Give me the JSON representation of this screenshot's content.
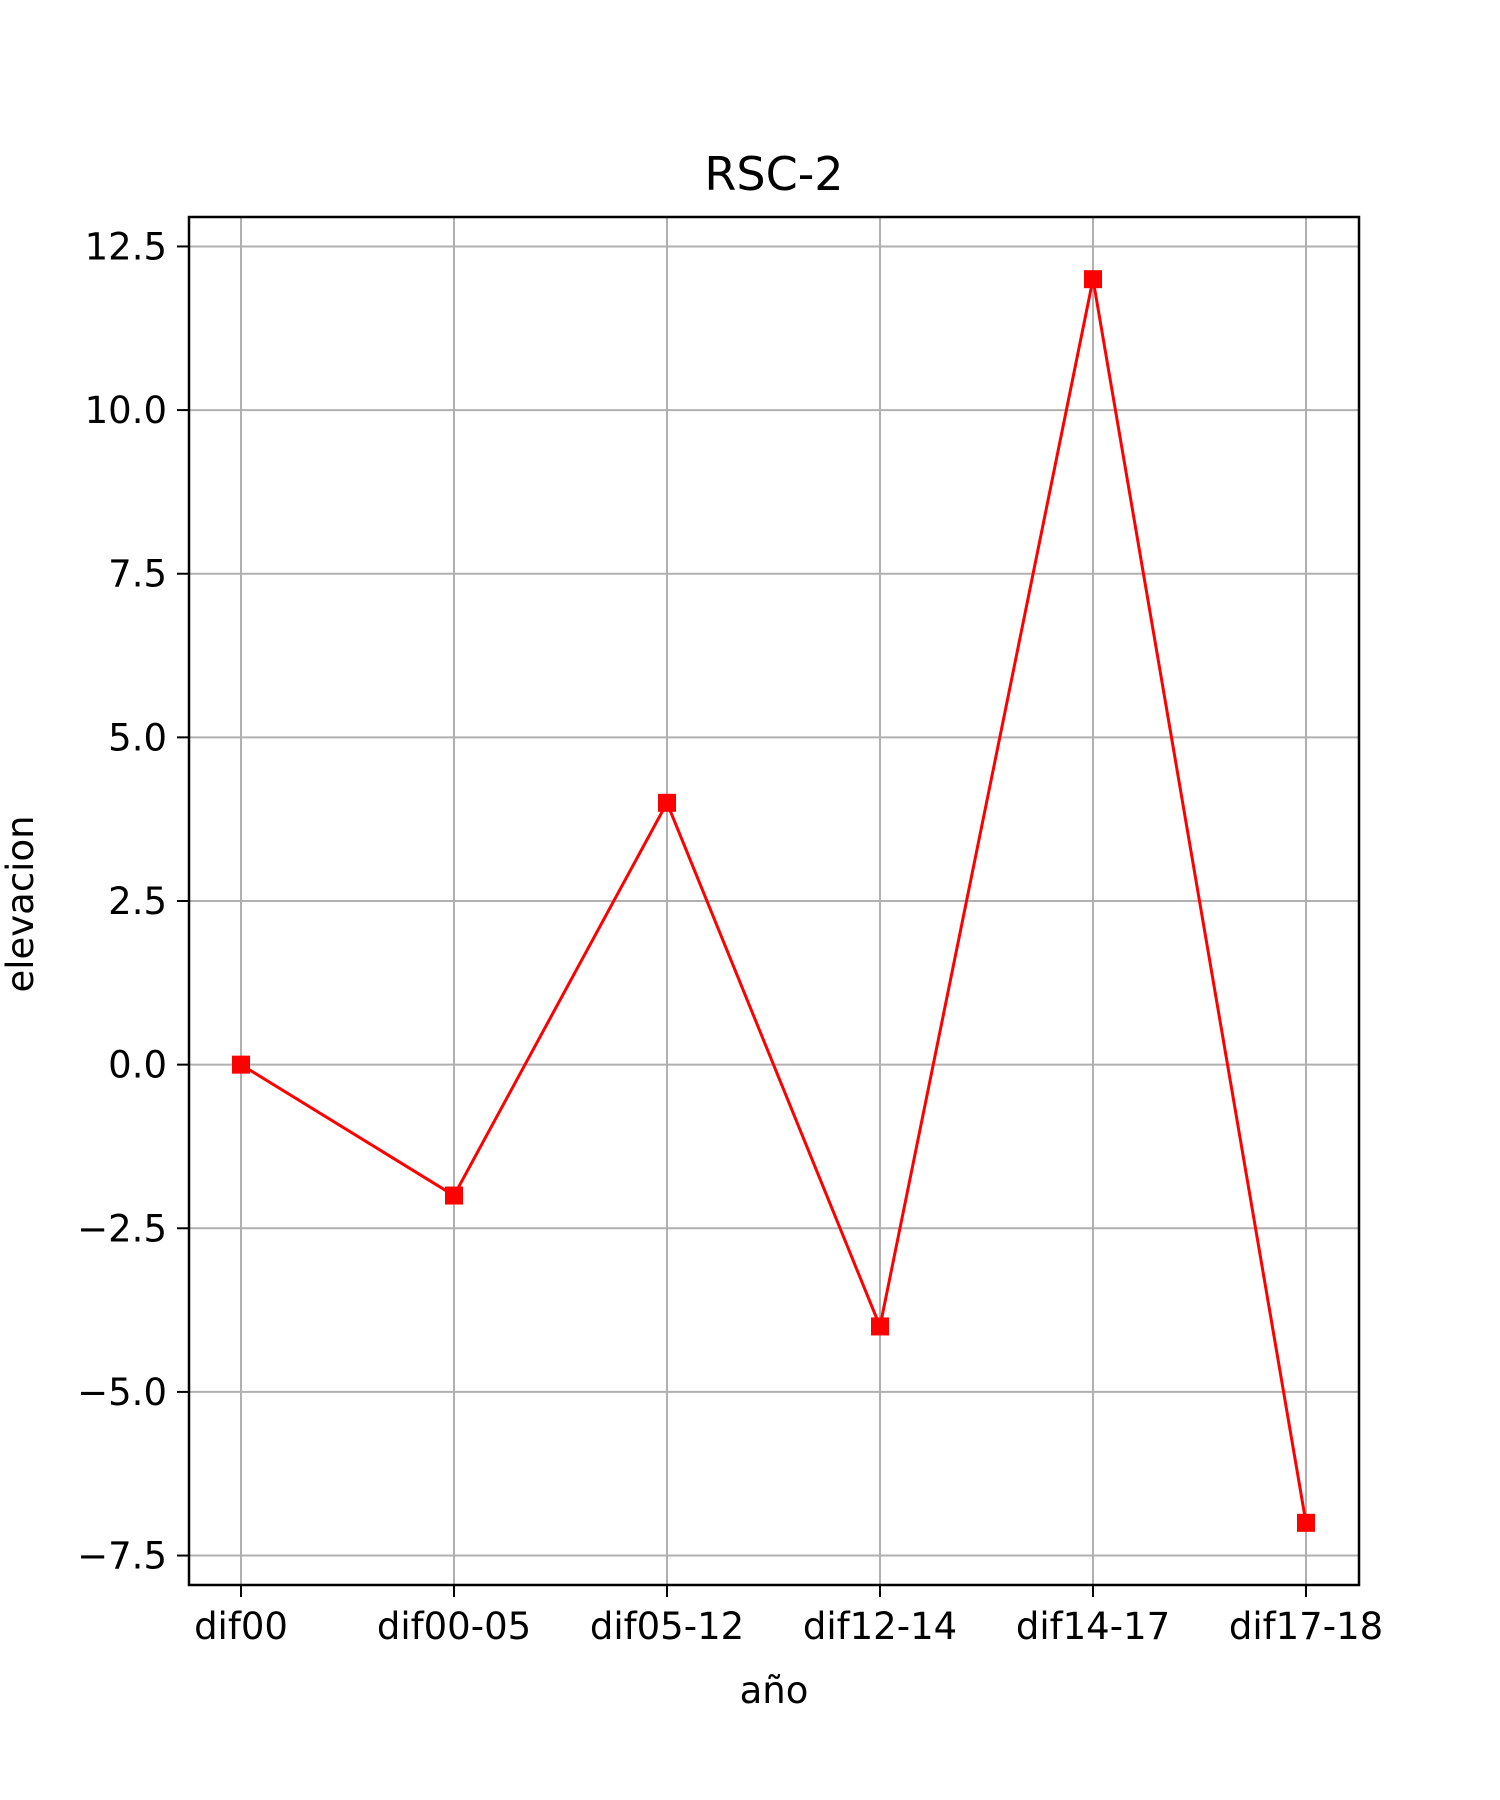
{
  "chart_data": {
    "type": "line",
    "title": "RSC-2",
    "xlabel": "año",
    "ylabel": "elevacion",
    "categories": [
      "dif00",
      "dif00-05",
      "dif05-12",
      "dif12-14",
      "dif14-17",
      "dif17-18"
    ],
    "series": [
      {
        "values": [
          0,
          -2,
          4,
          -4,
          12,
          -7
        ],
        "color": "#ff0000",
        "marker": "square"
      }
    ],
    "ylim": [
      -7.95,
      12.95
    ],
    "yticks": [
      -7.5,
      -5.0,
      -2.5,
      0.0,
      2.5,
      5.0,
      7.5,
      10.0,
      12.5
    ],
    "ytick_labels": [
      "−7.5",
      "−5.0",
      "−2.5",
      "0.0",
      "2.5",
      "5.0",
      "7.5",
      "10.0",
      "12.5"
    ],
    "grid": true,
    "colors": {
      "grid": "#b0b0b0",
      "axes": "#000000",
      "line": "#ff0000"
    }
  }
}
